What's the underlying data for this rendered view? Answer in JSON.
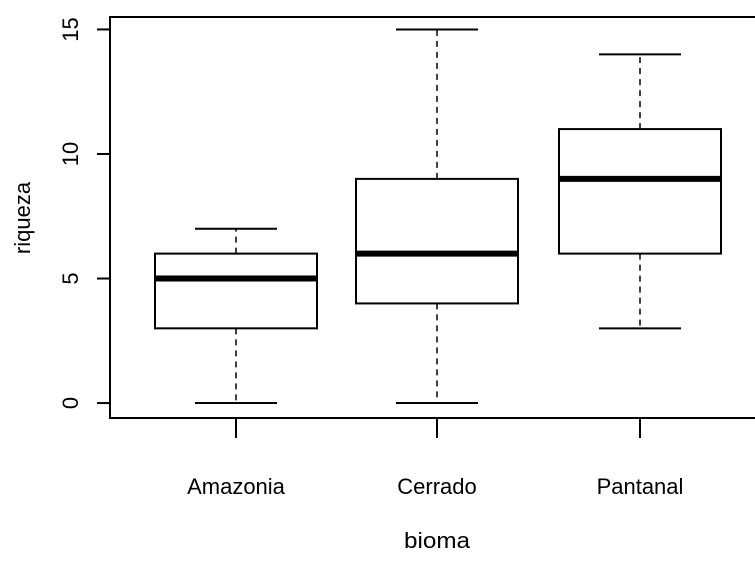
{
  "chart_data": {
    "type": "boxplot",
    "title": "",
    "xlabel": "bioma",
    "ylabel": "riqueza",
    "categories": [
      "Amazonia",
      "Cerrado",
      "Pantanal"
    ],
    "boxes": [
      {
        "category": "Amazonia",
        "min": 0,
        "q1": 3,
        "median": 5,
        "q3": 6,
        "max": 7
      },
      {
        "category": "Cerrado",
        "min": 0,
        "q1": 4,
        "median": 6,
        "q3": 9,
        "max": 15
      },
      {
        "category": "Pantanal",
        "min": 3,
        "q1": 6,
        "median": 9,
        "q3": 11,
        "max": 14
      }
    ],
    "ylim": [
      -0.6,
      15.5
    ],
    "yticks": [
      0,
      5,
      10,
      15
    ],
    "grid": false,
    "legend": "none"
  }
}
